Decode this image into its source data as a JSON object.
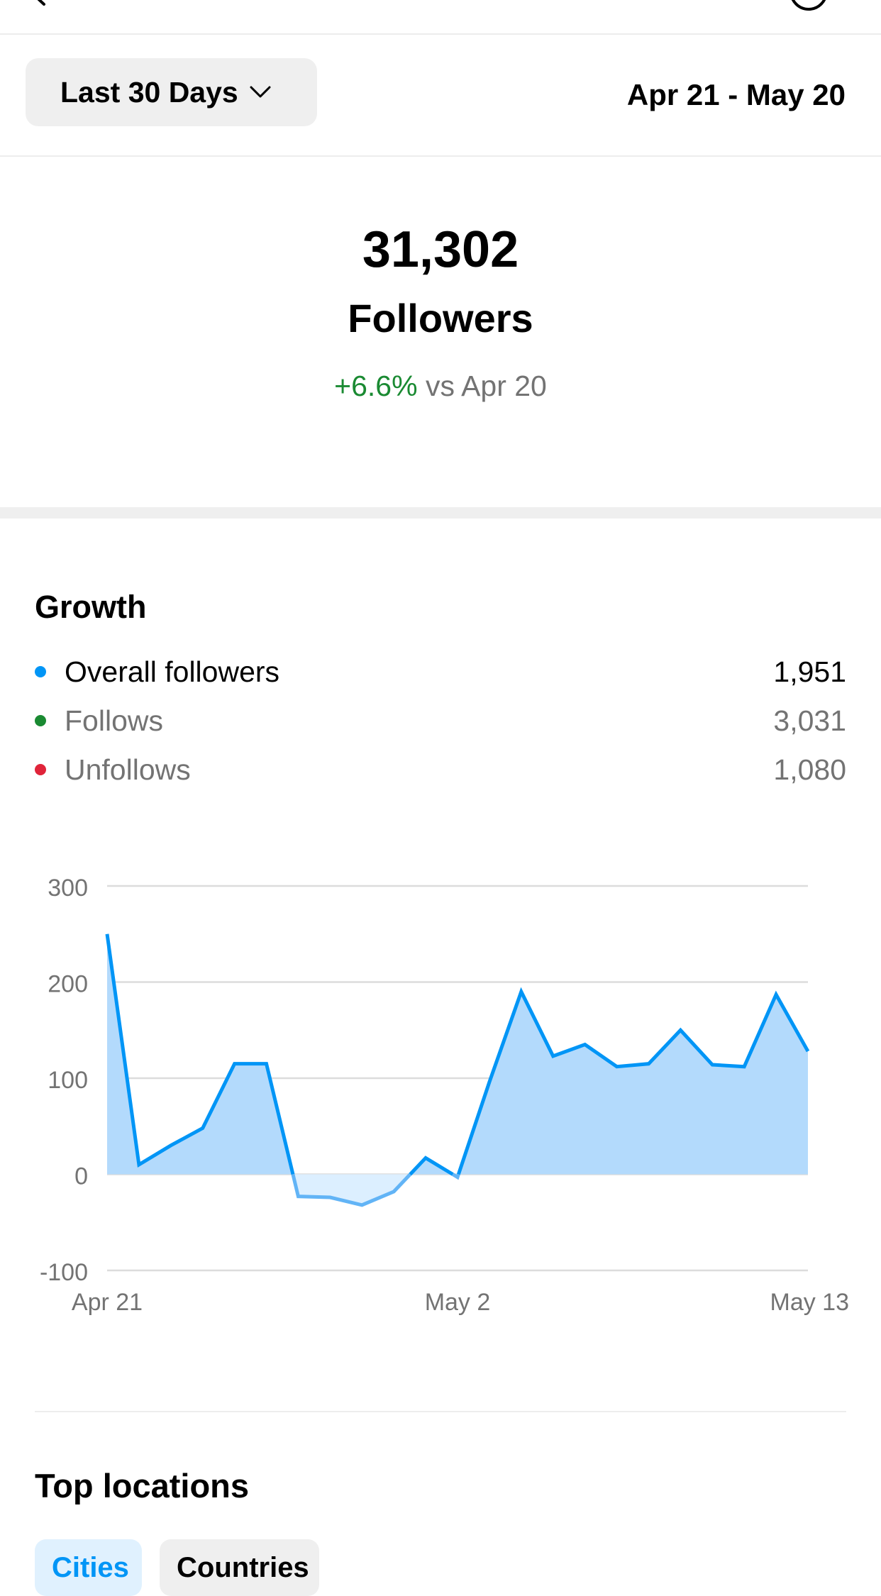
{
  "header": {
    "back_icon": "chevron-left-icon",
    "right_icon": "circle-info-icon"
  },
  "filter": {
    "range_label": "Last 30 Days",
    "range_icon": "chevron-down-icon",
    "date_range": "Apr 21 - May 20"
  },
  "summary": {
    "total": "31,302",
    "label": "Followers",
    "change": "+6.6%",
    "change_suffix": "vs Apr 20",
    "change_color": "#1a8a32"
  },
  "growth": {
    "title": "Growth",
    "legend": [
      {
        "label": "Overall followers",
        "value": "1,951",
        "color": "#0095f6"
      },
      {
        "label": "Follows",
        "value": "3,031",
        "color": "#1a8a32"
      },
      {
        "label": "Unfollows",
        "value": "1,080",
        "color": "#e0243a"
      }
    ]
  },
  "chart_data": {
    "type": "area",
    "series": [
      {
        "name": "Overall followers",
        "color": "#0095f6",
        "values": [
          250,
          10,
          30,
          48,
          115,
          115,
          -23,
          -24,
          -32,
          -18,
          17,
          -3,
          96,
          190,
          123,
          135,
          112,
          115,
          150,
          114,
          112,
          187,
          128
        ]
      }
    ],
    "x_ticks": [
      {
        "index": 0,
        "label": "Apr 21"
      },
      {
        "index": 11,
        "label": "May 2"
      },
      {
        "index": 22,
        "label": "May 13"
      }
    ],
    "y_ticks": [
      300,
      200,
      100,
      0,
      -100
    ],
    "ylim": [
      -100,
      300
    ],
    "grid": true,
    "title": "",
    "xlabel": "",
    "ylabel": ""
  },
  "locations": {
    "title": "Top locations",
    "tabs": [
      "Cities",
      "Countries"
    ]
  }
}
